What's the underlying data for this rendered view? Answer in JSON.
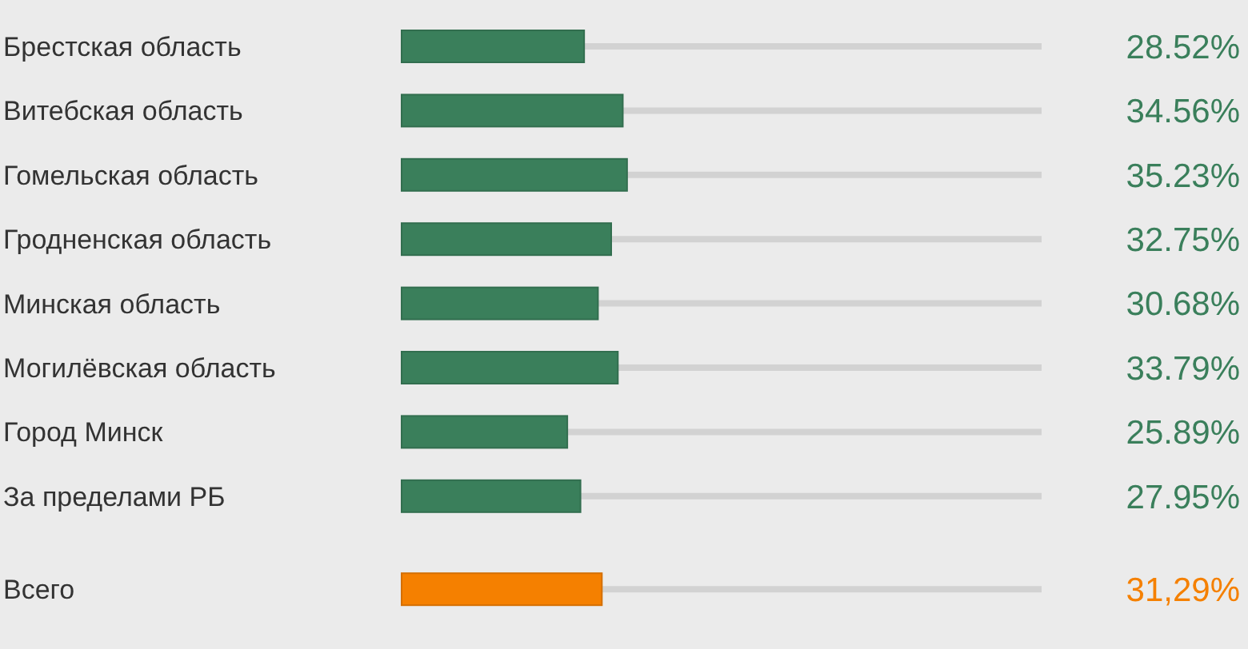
{
  "chart_data": {
    "type": "bar",
    "orientation": "horizontal",
    "categories": [
      "Брестская область",
      "Витебская область",
      "Гомельская область",
      "Гродненская область",
      "Минская область",
      "Могилёвская область",
      "Город Минск",
      "За пределами РБ",
      "Всего"
    ],
    "values": [
      28.52,
      34.56,
      35.23,
      32.75,
      30.68,
      33.79,
      25.89,
      27.95,
      31.29
    ],
    "colors": [
      "#3a7f5b",
      "#3a7f5b",
      "#3a7f5b",
      "#3a7f5b",
      "#3a7f5b",
      "#3a7f5b",
      "#3a7f5b",
      "#3a7f5b",
      "#f58000"
    ],
    "value_labels": [
      "28.52%",
      "34.56%",
      "35.23%",
      "32.75%",
      "30.68%",
      "33.79%",
      "25.89%",
      "27.95%",
      "31,29%"
    ],
    "xlim": [
      0,
      100
    ],
    "tick_labels": "y",
    "grid": "y"
  }
}
